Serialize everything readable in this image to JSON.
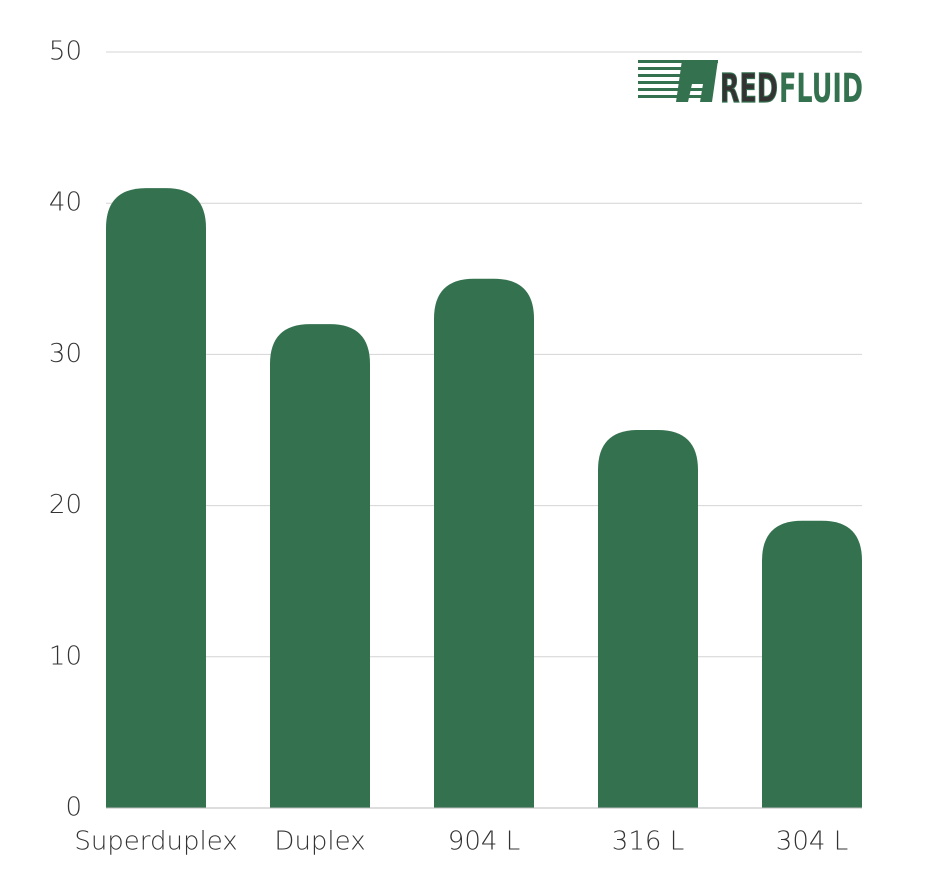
{
  "chart_data": {
    "type": "bar",
    "categories": [
      "Superduplex",
      "Duplex",
      "904 L",
      "316 L",
      "304 L"
    ],
    "values": [
      41,
      32,
      35,
      25,
      19
    ],
    "color": "#34724f",
    "ylim": [
      0,
      50
    ],
    "yticks": [
      0,
      10,
      20,
      30,
      40,
      50
    ],
    "grid": true
  },
  "logo": [
    "RED",
    "FLUID"
  ]
}
